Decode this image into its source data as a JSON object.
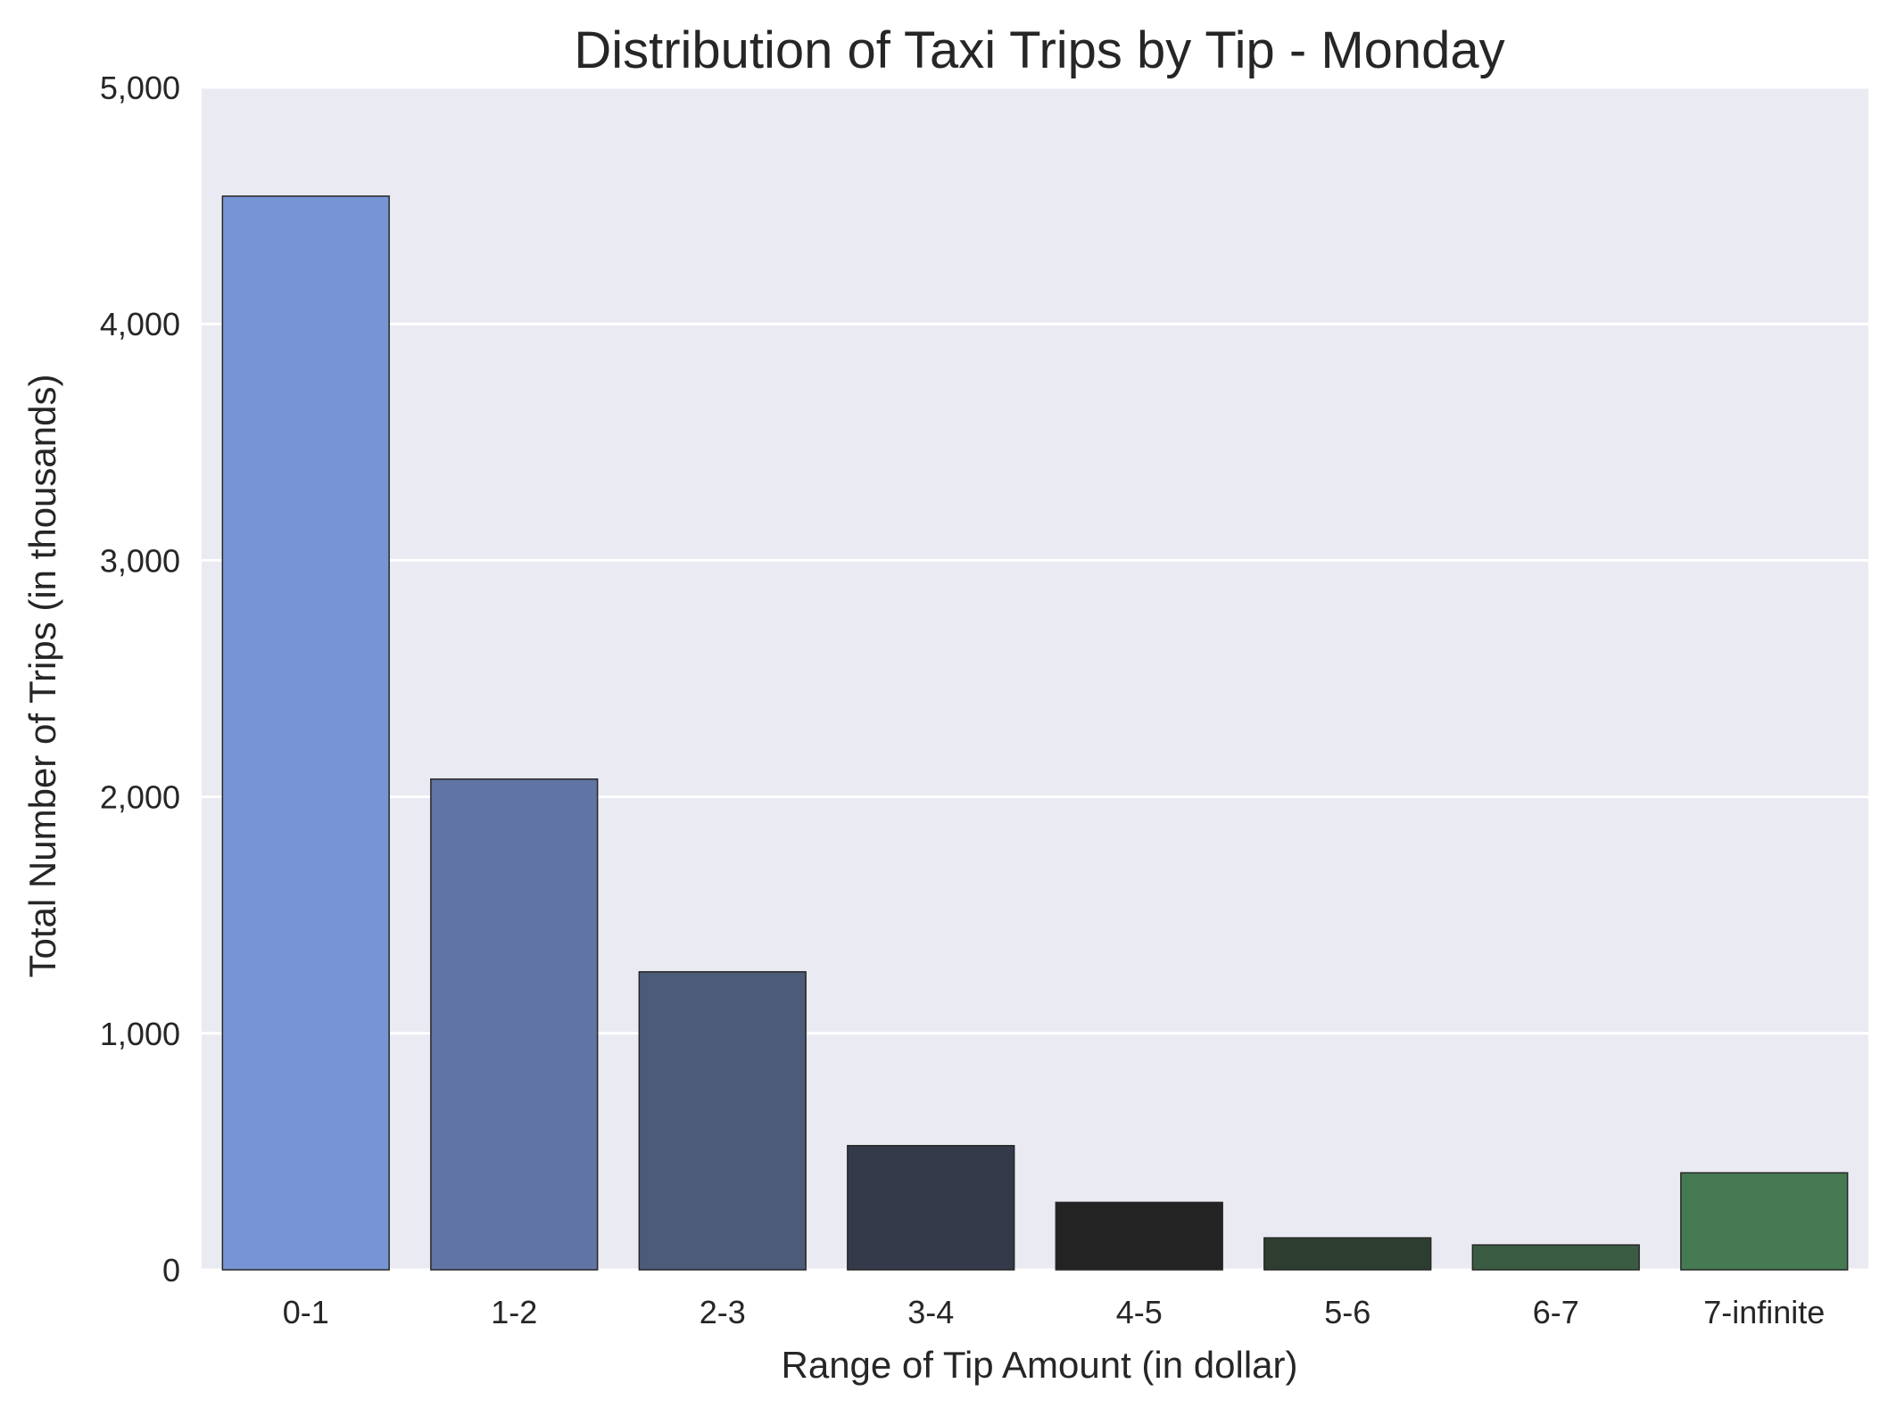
{
  "chart_data": {
    "type": "bar",
    "title": "Distribution of Taxi Trips by Tip - Monday",
    "xlabel": "Range of Tip Amount (in dollar)",
    "ylabel": "Total Number of Trips (in thousands)",
    "categories": [
      "0-1",
      "1-2",
      "2-3",
      "3-4",
      "4-5",
      "5-6",
      "6-7",
      "7-infinite"
    ],
    "values": [
      4540,
      2075,
      1260,
      525,
      285,
      135,
      105,
      410
    ],
    "colors": [
      "#7795d4",
      "#6075a3",
      "#4c5b78",
      "#343a49",
      "#232323",
      "#2d3e31",
      "#3a5c43",
      "#457a53"
    ],
    "ylim": [
      0,
      5000
    ],
    "yticks": [
      0,
      1000,
      2000,
      3000,
      4000,
      5000
    ],
    "ytick_labels": [
      "0",
      "1,000",
      "2,000",
      "3,000",
      "4,000",
      "5,000"
    ],
    "grid": true,
    "background": "#eaeaf2",
    "legend": null
  }
}
